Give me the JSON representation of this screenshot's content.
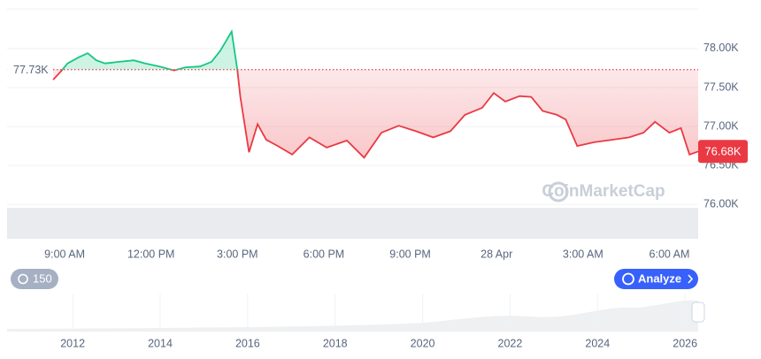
{
  "chart_data": {
    "type": "line",
    "x": [
      8.6,
      8.9,
      9.1,
      9.5,
      9.8,
      10.1,
      10.4,
      10.9,
      11.4,
      11.8,
      12.3,
      12.8,
      13.2,
      13.7,
      14.1,
      14.4,
      14.8,
      15.0,
      15.1,
      15.4,
      15.7,
      16.0,
      16.4,
      16.9,
      17.5,
      18.1,
      18.8,
      19.4,
      20.0,
      20.6,
      21.2,
      21.8,
      22.4,
      22.9,
      23.5,
      23.9,
      24.3,
      24.8,
      25.2,
      25.6,
      26.1,
      26.4,
      26.8,
      27.4,
      28.0,
      28.6,
      29.1,
      29.5,
      30.0,
      30.4,
      30.7,
      31.0
    ],
    "values": [
      77.6,
      77.72,
      77.81,
      77.89,
      77.94,
      77.85,
      77.81,
      77.83,
      77.85,
      77.81,
      77.77,
      77.72,
      77.76,
      77.77,
      77.83,
      77.97,
      78.22,
      77.72,
      77.38,
      76.67,
      77.03,
      76.83,
      76.75,
      76.64,
      76.86,
      76.73,
      76.82,
      76.6,
      76.92,
      77.01,
      76.94,
      76.86,
      76.94,
      77.15,
      77.24,
      77.43,
      77.32,
      77.39,
      77.38,
      77.2,
      77.15,
      77.09,
      76.75,
      76.8,
      76.83,
      76.86,
      76.92,
      77.06,
      76.92,
      76.98,
      76.64,
      76.68
    ],
    "up_color": "#16c784",
    "down_color": "#ea3943",
    "reference_line": {
      "value": 77.73,
      "label": "77.73K"
    },
    "current_price": {
      "value": 76.68,
      "label": "76.68K"
    },
    "xlim": [
      7,
      31
    ],
    "xticks": [
      {
        "value": 9,
        "label": "9:00 AM"
      },
      {
        "value": 12,
        "label": "12:00 PM"
      },
      {
        "value": 15,
        "label": "3:00 PM"
      },
      {
        "value": 18,
        "label": "6:00 PM"
      },
      {
        "value": 21,
        "label": "9:00 PM"
      },
      {
        "value": 24,
        "label": "28 Apr"
      },
      {
        "value": 27,
        "label": "3:00 AM"
      },
      {
        "value": 30,
        "label": "6:00 AM"
      }
    ],
    "ylim": [
      75.56,
      78.51
    ],
    "yticks": [
      {
        "value": 76.0,
        "label": "76.00K"
      },
      {
        "value": 76.5,
        "label": "76.50K"
      },
      {
        "value": 77.0,
        "label": "77.00K"
      },
      {
        "value": 77.5,
        "label": "77.50K"
      },
      {
        "value": 78.0,
        "label": "78.00K"
      }
    ],
    "grid": true,
    "watermark": "CoinMarketCap",
    "history_button": "150",
    "analyze_button": "Analyze",
    "navigator": {
      "xlim": [
        2010.5,
        2026.3
      ],
      "xticks": [
        2012,
        2014,
        2016,
        2018,
        2020,
        2022,
        2024,
        2026
      ]
    }
  }
}
